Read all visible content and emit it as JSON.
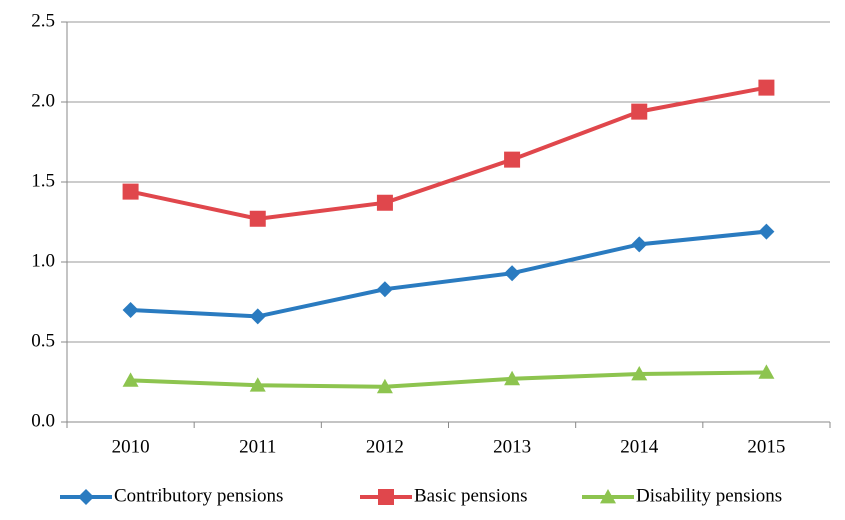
{
  "chart_data": {
    "type": "line",
    "categories": [
      "2010",
      "2011",
      "2012",
      "2013",
      "2014",
      "2015"
    ],
    "series": [
      {
        "name": "Contributory pensions",
        "color": "#2a7bc0",
        "marker": "diamond",
        "values": [
          0.7,
          0.66,
          0.83,
          0.93,
          1.11,
          1.19
        ]
      },
      {
        "name": "Basic pensions",
        "color": "#e0474c",
        "marker": "square",
        "values": [
          1.44,
          1.27,
          1.37,
          1.64,
          1.94,
          2.09
        ]
      },
      {
        "name": "Disability pensions",
        "color": "#8dc44f",
        "marker": "triangle",
        "values": [
          0.26,
          0.23,
          0.22,
          0.27,
          0.3,
          0.31
        ]
      }
    ],
    "ylim": [
      0,
      2.5
    ],
    "yticks": [
      {
        "value": 0,
        "label": "0.0"
      },
      0.5,
      {
        "value": 1,
        "label": "1.0"
      },
      1.5,
      {
        "value": 2,
        "label": "2.0"
      },
      2.5
    ],
    "grid": true,
    "legend": "bottom"
  }
}
